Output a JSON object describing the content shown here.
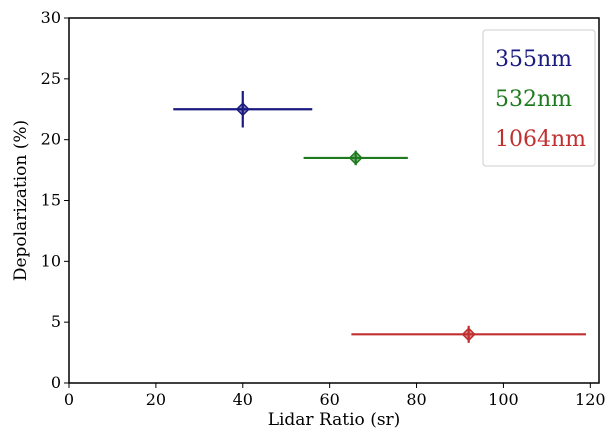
{
  "chart_data": {
    "type": "scatter",
    "title": "",
    "xlabel": "Lidar Ratio (sr)",
    "ylabel": "Depolarization (%)",
    "xlim": [
      0,
      122
    ],
    "ylim": [
      0,
      30
    ],
    "xticks": [
      0,
      20,
      40,
      60,
      80,
      100,
      120
    ],
    "yticks": [
      0,
      5,
      10,
      15,
      20,
      25,
      30
    ],
    "grid": false,
    "legend_position": "top-right",
    "series": [
      {
        "name": "355nm",
        "color": "#1a1a80",
        "x": 40,
        "y": 22.5,
        "xerr": [
          16,
          16
        ],
        "yerr": [
          1.5,
          1.5
        ]
      },
      {
        "name": "532nm",
        "color": "#1f7a1f",
        "x": 66,
        "y": 18.5,
        "xerr": [
          12,
          12
        ],
        "yerr": [
          0.6,
          0.6
        ]
      },
      {
        "name": "1064nm",
        "color": "#c03030",
        "x": 92,
        "y": 4.0,
        "xerr": [
          27,
          27
        ],
        "yerr": [
          0.7,
          0.7
        ]
      }
    ]
  }
}
